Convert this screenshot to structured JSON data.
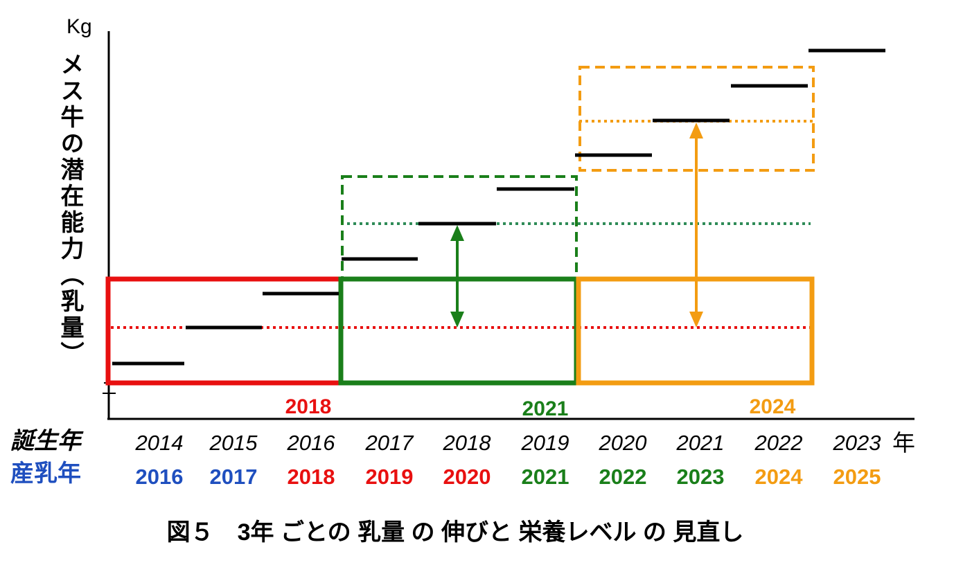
{
  "y_unit": "Kg",
  "y_label": "メス牛の潜在能力（乳量）",
  "boxes": [
    {
      "label": "2018"
    },
    {
      "label": "2021"
    },
    {
      "label": "2024"
    }
  ],
  "rows": {
    "birth_label": "誕生年",
    "production_label": "産乳年"
  },
  "birth_years": [
    "2014",
    "2015",
    "2016",
    "2017",
    "2018",
    "2019",
    "2020",
    "2021",
    "2022",
    "2023"
  ],
  "birth_unit": "年",
  "production_years": [
    "2016",
    "2017",
    "2018",
    "2019",
    "2020",
    "2021",
    "2022",
    "2023",
    "2024",
    "2025"
  ],
  "caption": "図５　3年 ごとの 乳量 の 伸びと 栄養レベル の 見直し"
}
